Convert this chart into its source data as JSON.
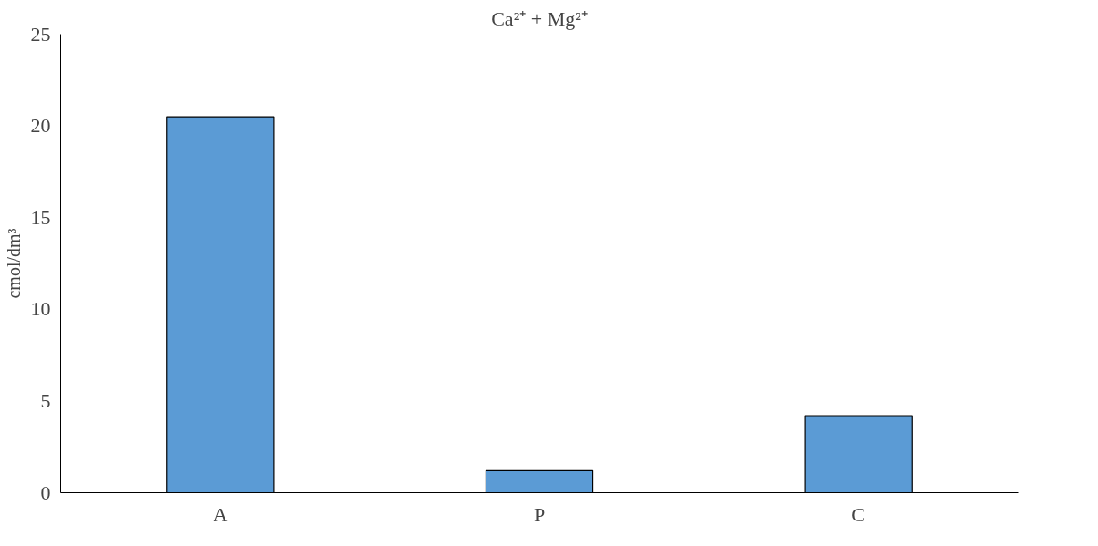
{
  "chart_data": {
    "type": "bar",
    "title": "Ca²⁺ + Mg²⁺",
    "ylabel": "cmol/dm³",
    "categories": [
      "A",
      "P",
      "C"
    ],
    "values": [
      20.5,
      1.2,
      4.2
    ],
    "color": "#5b9bd5",
    "ylim": [
      0,
      25
    ],
    "yticks": [
      0,
      5,
      10,
      15,
      20,
      25
    ],
    "grid": false
  }
}
